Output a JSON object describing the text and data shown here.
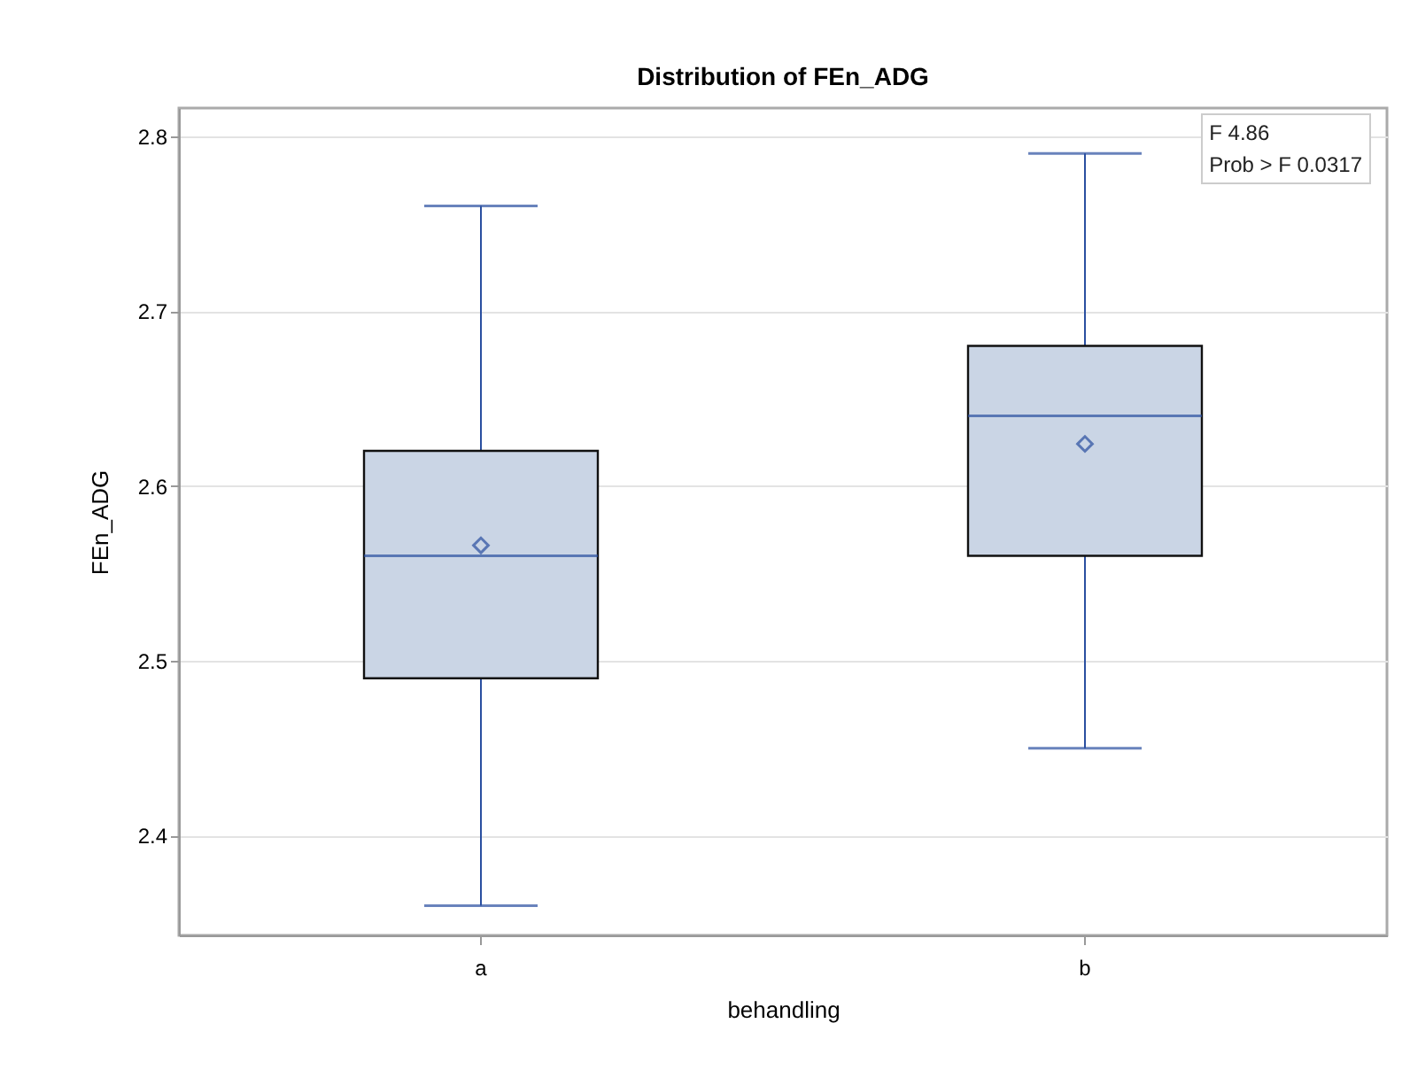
{
  "chart_data": {
    "type": "box",
    "title": "Distribution of FEn_ADG",
    "xlabel": "behandling",
    "ylabel": "FEn_ADG",
    "categories": [
      "a",
      "b"
    ],
    "boxes": [
      {
        "low": 2.36,
        "q1": 2.49,
        "median": 2.56,
        "q3": 2.62,
        "high": 2.76,
        "mean": 2.566
      },
      {
        "low": 2.45,
        "q1": 2.56,
        "median": 2.64,
        "q3": 2.68,
        "high": 2.79,
        "mean": 2.624
      }
    ],
    "color": "#cad5e5",
    "ylim": [
      2.343,
      2.816
    ],
    "yticks": [
      2.4,
      2.5,
      2.6,
      2.7,
      2.8
    ],
    "grid": "y",
    "marker": "diamond",
    "annotations": [
      "F 4.86",
      "Prob > F 0.0317"
    ]
  }
}
